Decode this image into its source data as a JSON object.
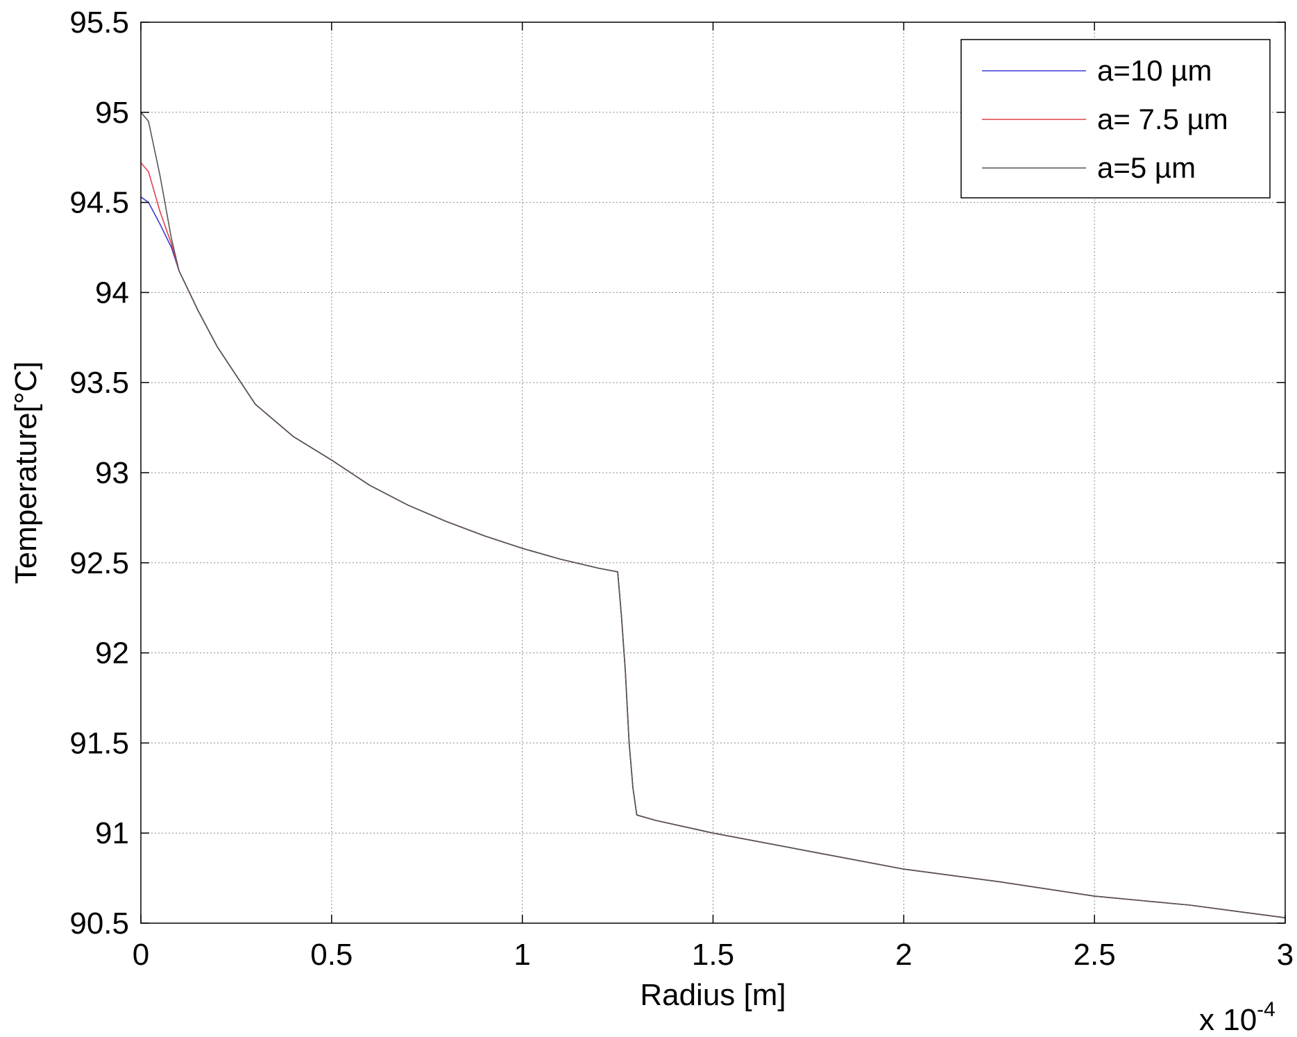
{
  "chart_data": {
    "type": "line",
    "title": "",
    "xlabel": "Radius [m]",
    "ylabel": "Temperature[°C]",
    "x_multiplier_label": "x 10",
    "x_multiplier_exponent": "-4",
    "xlim": [
      0,
      3
    ],
    "ylim": [
      90.5,
      95.5
    ],
    "xticks": [
      0,
      0.5,
      1,
      1.5,
      2,
      2.5,
      3
    ],
    "xtick_labels": [
      "0",
      "0.5",
      "1",
      "1.5",
      "2",
      "2.5",
      "3"
    ],
    "yticks": [
      90.5,
      91,
      91.5,
      92,
      92.5,
      93,
      93.5,
      94,
      94.5,
      95,
      95.5
    ],
    "ytick_labels": [
      "90.5",
      "91",
      "91.5",
      "92",
      "92.5",
      "93",
      "93.5",
      "94",
      "94.5",
      "95",
      "95.5"
    ],
    "grid": true,
    "legend_position": "top-right",
    "series": [
      {
        "name": "a=10 µm",
        "color": "#3a3ad6",
        "x": [
          0,
          0.02,
          0.05,
          0.08,
          0.1,
          0.15,
          0.2,
          0.3,
          0.4,
          0.5,
          0.6,
          0.7,
          0.8,
          0.9,
          1.0,
          1.1,
          1.2,
          1.25,
          1.26,
          1.27,
          1.28,
          1.29,
          1.3,
          1.35,
          1.5,
          1.75,
          2.0,
          2.25,
          2.5,
          2.75,
          3.0
        ],
        "y": [
          94.53,
          94.5,
          94.38,
          94.25,
          94.12,
          93.9,
          93.7,
          93.38,
          93.2,
          93.07,
          92.93,
          92.82,
          92.73,
          92.65,
          92.58,
          92.52,
          92.47,
          92.45,
          92.2,
          91.9,
          91.5,
          91.25,
          91.1,
          91.07,
          91.0,
          90.9,
          90.8,
          90.73,
          90.65,
          90.6,
          90.53
        ]
      },
      {
        "name": "a= 7.5 µm",
        "color": "#e0424a",
        "x": [
          0,
          0.02,
          0.05,
          0.08,
          0.1,
          0.15,
          0.2,
          0.3,
          0.4,
          0.5,
          0.6,
          0.7,
          0.8,
          0.9,
          1.0,
          1.1,
          1.2,
          1.25,
          1.26,
          1.27,
          1.28,
          1.29,
          1.3,
          1.35,
          1.5,
          1.75,
          2.0,
          2.25,
          2.5,
          2.75,
          3.0
        ],
        "y": [
          94.72,
          94.67,
          94.45,
          94.27,
          94.12,
          93.9,
          93.7,
          93.38,
          93.2,
          93.07,
          92.93,
          92.82,
          92.73,
          92.65,
          92.58,
          92.52,
          92.47,
          92.45,
          92.2,
          91.9,
          91.5,
          91.25,
          91.1,
          91.07,
          91.0,
          90.9,
          90.8,
          90.73,
          90.65,
          90.6,
          90.53
        ]
      },
      {
        "name": "a=5 µm",
        "color": "#555555",
        "x": [
          0,
          0.02,
          0.05,
          0.08,
          0.1,
          0.15,
          0.2,
          0.3,
          0.4,
          0.5,
          0.6,
          0.7,
          0.8,
          0.9,
          1.0,
          1.1,
          1.2,
          1.25,
          1.26,
          1.27,
          1.28,
          1.29,
          1.3,
          1.35,
          1.5,
          1.75,
          2.0,
          2.25,
          2.5,
          2.75,
          3.0
        ],
        "y": [
          95.0,
          94.95,
          94.65,
          94.3,
          94.12,
          93.9,
          93.7,
          93.38,
          93.2,
          93.07,
          92.93,
          92.82,
          92.73,
          92.65,
          92.58,
          92.52,
          92.47,
          92.45,
          92.2,
          91.9,
          91.5,
          91.25,
          91.1,
          91.07,
          91.0,
          90.9,
          90.8,
          90.73,
          90.65,
          90.6,
          90.53
        ]
      }
    ]
  }
}
